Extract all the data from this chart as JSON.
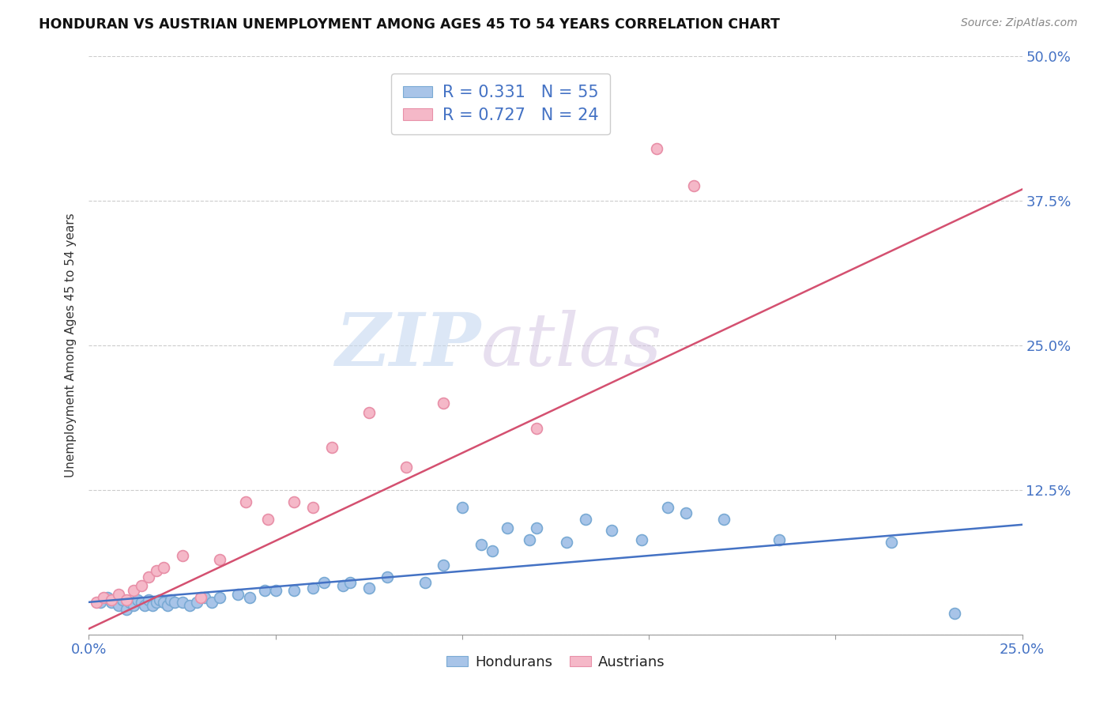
{
  "title": "HONDURAN VS AUSTRIAN UNEMPLOYMENT AMONG AGES 45 TO 54 YEARS CORRELATION CHART",
  "source": "Source: ZipAtlas.com",
  "ylabel": "Unemployment Among Ages 45 to 54 years",
  "xlim": [
    0.0,
    0.25
  ],
  "ylim": [
    0.0,
    0.5
  ],
  "x_ticks": [
    0.0,
    0.05,
    0.1,
    0.15,
    0.2,
    0.25
  ],
  "x_tick_labels": [
    "0.0%",
    "",
    "",
    "",
    "",
    "25.0%"
  ],
  "y_ticks": [
    0.0,
    0.125,
    0.25,
    0.375,
    0.5
  ],
  "y_tick_labels": [
    "",
    "12.5%",
    "25.0%",
    "37.5%",
    "50.0%"
  ],
  "honduran_color": "#a8c4e8",
  "honduran_edge_color": "#7aaad4",
  "austrian_color": "#f5b8c8",
  "austrian_edge_color": "#e890a8",
  "honduran_line_color": "#4472c4",
  "austrian_line_color": "#d45070",
  "legend_R_honduran": "0.331",
  "legend_N_honduran": "55",
  "legend_R_austrian": "0.727",
  "legend_N_austrian": "24",
  "watermark_zip": "ZIP",
  "watermark_atlas": "atlas",
  "honduran_scatter_x": [
    0.003,
    0.005,
    0.006,
    0.007,
    0.008,
    0.009,
    0.01,
    0.011,
    0.012,
    0.013,
    0.014,
    0.015,
    0.016,
    0.017,
    0.018,
    0.019,
    0.02,
    0.021,
    0.022,
    0.023,
    0.025,
    0.027,
    0.029,
    0.031,
    0.033,
    0.035,
    0.04,
    0.043,
    0.047,
    0.05,
    0.055,
    0.06,
    0.063,
    0.068,
    0.07,
    0.075,
    0.08,
    0.09,
    0.095,
    0.1,
    0.105,
    0.108,
    0.112,
    0.118,
    0.12,
    0.128,
    0.133,
    0.14,
    0.148,
    0.155,
    0.16,
    0.17,
    0.185,
    0.215,
    0.232
  ],
  "honduran_scatter_y": [
    0.028,
    0.032,
    0.028,
    0.03,
    0.025,
    0.03,
    0.022,
    0.028,
    0.025,
    0.03,
    0.028,
    0.025,
    0.03,
    0.025,
    0.028,
    0.03,
    0.028,
    0.025,
    0.03,
    0.028,
    0.028,
    0.025,
    0.028,
    0.032,
    0.028,
    0.032,
    0.035,
    0.032,
    0.038,
    0.038,
    0.038,
    0.04,
    0.045,
    0.042,
    0.045,
    0.04,
    0.05,
    0.045,
    0.06,
    0.11,
    0.078,
    0.072,
    0.092,
    0.082,
    0.092,
    0.08,
    0.1,
    0.09,
    0.082,
    0.11,
    0.105,
    0.1,
    0.082,
    0.08,
    0.018
  ],
  "austrian_scatter_x": [
    0.002,
    0.004,
    0.006,
    0.008,
    0.01,
    0.012,
    0.014,
    0.016,
    0.018,
    0.02,
    0.025,
    0.03,
    0.035,
    0.042,
    0.048,
    0.055,
    0.06,
    0.065,
    0.075,
    0.085,
    0.095,
    0.12,
    0.152,
    0.162
  ],
  "austrian_scatter_y": [
    0.028,
    0.032,
    0.03,
    0.035,
    0.03,
    0.038,
    0.042,
    0.05,
    0.055,
    0.058,
    0.068,
    0.032,
    0.065,
    0.115,
    0.1,
    0.115,
    0.11,
    0.162,
    0.192,
    0.145,
    0.2,
    0.178,
    0.42,
    0.388
  ],
  "honduran_trend_x": [
    0.0,
    0.25
  ],
  "honduran_trend_y": [
    0.028,
    0.095
  ],
  "austrian_trend_x": [
    0.0,
    0.25
  ],
  "austrian_trend_y": [
    0.005,
    0.385
  ]
}
